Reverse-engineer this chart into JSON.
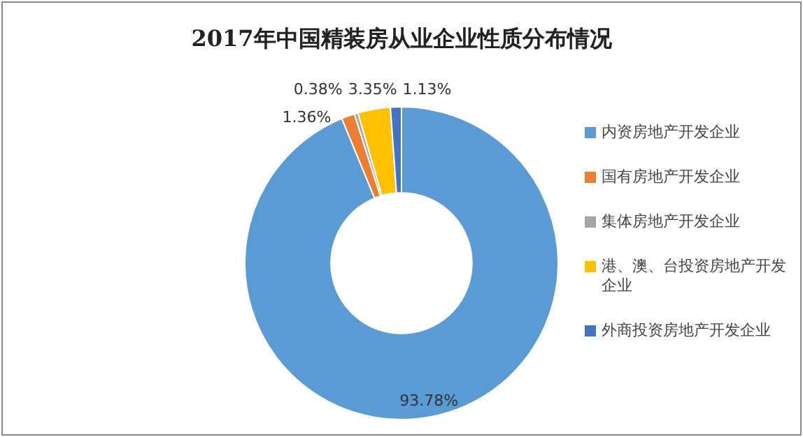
{
  "chart_data": {
    "type": "donut",
    "title": "2017年中国精装房从业企业性质分布情况",
    "categories": [
      "内资房地产开发企业",
      "国有房地产开发企业",
      "集体房地产开发企业",
      "港、澳、台投资房地产开发企业",
      "外商投资房地产开发企业"
    ],
    "values": [
      93.78,
      1.36,
      0.38,
      3.35,
      1.13
    ],
    "colors": [
      "#5b9bd5",
      "#ed7d31",
      "#a5a5a5",
      "#ffc000",
      "#4472c4"
    ],
    "value_labels": [
      "93.78%",
      "1.36%",
      "0.38%",
      "3.35%",
      "1.13%"
    ],
    "legend": "right"
  }
}
